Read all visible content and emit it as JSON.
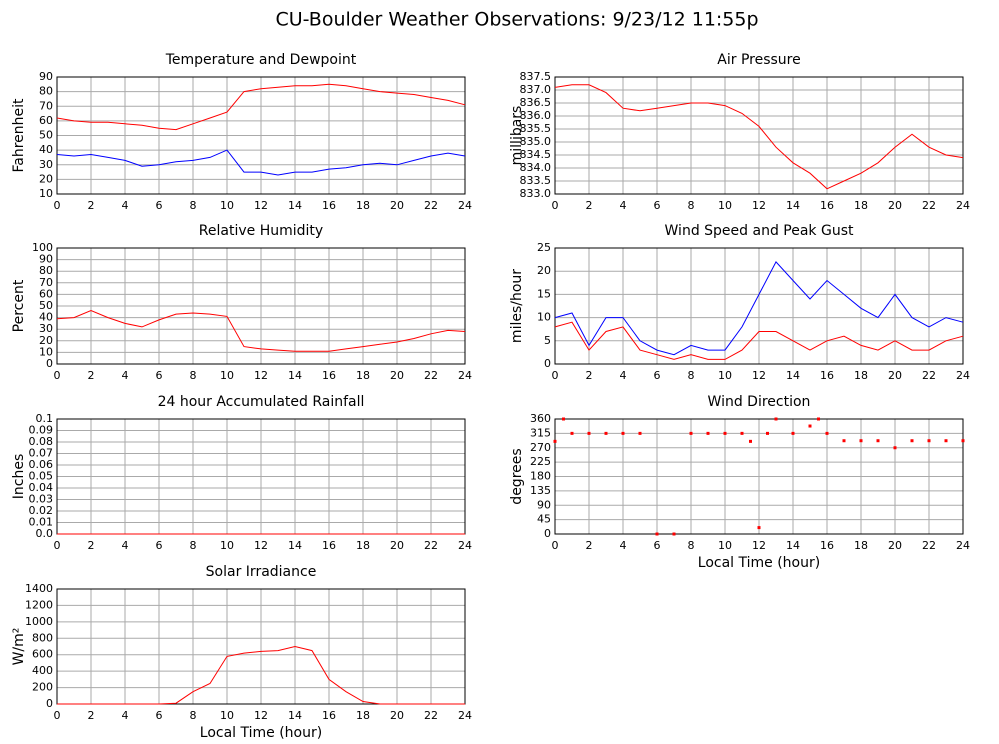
{
  "title": "CU-Boulder Weather Observations: 9/23/12 11:55p",
  "chart_data": [
    {
      "type": "line",
      "title": "Temperature and Dewpoint",
      "y_label": "Fahrenheit",
      "x": [
        0,
        1,
        2,
        3,
        4,
        5,
        6,
        7,
        8,
        9,
        10,
        11,
        12,
        13,
        14,
        15,
        16,
        17,
        18,
        19,
        20,
        21,
        22,
        23,
        24
      ],
      "series": [
        {
          "color": "#ff0000",
          "values": [
            62,
            60,
            59,
            59,
            58,
            57,
            55,
            54,
            58,
            62,
            66,
            80,
            82,
            83,
            84,
            84,
            85,
            84,
            82,
            80,
            79,
            78,
            76,
            74,
            71
          ]
        },
        {
          "color": "#0000ff",
          "values": [
            37,
            36,
            37,
            35,
            33,
            29,
            30,
            32,
            33,
            35,
            40,
            25,
            25,
            23,
            25,
            25,
            27,
            28,
            30,
            31,
            30,
            33,
            36,
            38,
            36
          ]
        }
      ],
      "xlim": [
        0,
        24
      ],
      "xticks": [
        0,
        2,
        4,
        6,
        8,
        10,
        12,
        14,
        16,
        18,
        20,
        22,
        24
      ],
      "ylim": [
        10,
        90
      ],
      "yticks": [
        10,
        20,
        30,
        40,
        50,
        60,
        70,
        80,
        90
      ],
      "grid": true
    },
    {
      "type": "line",
      "title": "Air Pressure",
      "y_label": "millibars",
      "x": [
        0,
        1,
        2,
        3,
        4,
        5,
        6,
        7,
        8,
        9,
        10,
        11,
        12,
        13,
        14,
        15,
        16,
        17,
        18,
        19,
        20,
        21,
        22,
        23,
        24
      ],
      "series": [
        {
          "color": "#ff0000",
          "values": [
            837.1,
            837.2,
            837.2,
            836.9,
            836.3,
            836.2,
            836.3,
            836.4,
            836.5,
            836.5,
            836.4,
            836.1,
            835.6,
            834.8,
            834.2,
            833.8,
            833.2,
            833.5,
            833.8,
            834.2,
            834.8,
            835.3,
            834.8,
            834.5,
            834.4
          ]
        }
      ],
      "xlim": [
        0,
        24
      ],
      "xticks": [
        0,
        2,
        4,
        6,
        8,
        10,
        12,
        14,
        16,
        18,
        20,
        22,
        24
      ],
      "ylim": [
        833,
        837.5
      ],
      "yticks": [
        {
          "value": 833,
          "label": "833.0"
        },
        833.5,
        {
          "value": 834,
          "label": "834.0"
        },
        834.5,
        {
          "value": 835,
          "label": "835.0"
        },
        835.5,
        {
          "value": 836,
          "label": "836.0"
        },
        836.5,
        {
          "value": 837,
          "label": "837.0"
        },
        837.5
      ],
      "grid": true
    },
    {
      "type": "line",
      "title": "Relative Humidity",
      "y_label": "Percent",
      "x": [
        0,
        1,
        2,
        3,
        4,
        5,
        6,
        7,
        8,
        9,
        10,
        11,
        12,
        13,
        14,
        15,
        16,
        17,
        18,
        19,
        20,
        21,
        22,
        23,
        24
      ],
      "series": [
        {
          "color": "#ff0000",
          "values": [
            39,
            40,
            46,
            40,
            35,
            32,
            38,
            43,
            44,
            43,
            41,
            15,
            13,
            12,
            11,
            11,
            11,
            13,
            15,
            17,
            19,
            22,
            26,
            29,
            28
          ]
        }
      ],
      "xlim": [
        0,
        24
      ],
      "xticks": [
        0,
        2,
        4,
        6,
        8,
        10,
        12,
        14,
        16,
        18,
        20,
        22,
        24
      ],
      "ylim": [
        0,
        100
      ],
      "yticks": [
        0,
        10,
        20,
        30,
        40,
        50,
        60,
        70,
        80,
        90,
        100
      ],
      "grid": true
    },
    {
      "type": "line",
      "title": "Wind Speed and Peak Gust",
      "y_label": "miles/hour",
      "x": [
        0,
        1,
        2,
        3,
        4,
        5,
        6,
        7,
        8,
        9,
        10,
        11,
        12,
        13,
        14,
        15,
        16,
        17,
        18,
        19,
        20,
        21,
        22,
        23,
        24
      ],
      "series": [
        {
          "color": "#0000ff",
          "values": [
            10,
            11,
            4,
            10,
            10,
            5,
            3,
            2,
            4,
            3,
            3,
            8,
            15,
            22,
            18,
            14,
            18,
            15,
            12,
            10,
            15,
            10,
            8,
            10,
            9
          ]
        },
        {
          "color": "#ff0000",
          "values": [
            8,
            9,
            3,
            7,
            8,
            3,
            2,
            1,
            2,
            1,
            1,
            3,
            7,
            7,
            5,
            3,
            5,
            6,
            4,
            3,
            5,
            3,
            3,
            5,
            6
          ]
        }
      ],
      "xlim": [
        0,
        24
      ],
      "xticks": [
        0,
        2,
        4,
        6,
        8,
        10,
        12,
        14,
        16,
        18,
        20,
        22,
        24
      ],
      "ylim": [
        0,
        25
      ],
      "yticks": [
        0,
        5,
        10,
        15,
        20,
        25
      ],
      "grid": true
    },
    {
      "type": "line",
      "title": "24 hour Accumulated Rainfall",
      "y_label": "Inches",
      "x": [
        0,
        1,
        2,
        3,
        4,
        5,
        6,
        7,
        8,
        9,
        10,
        11,
        12,
        13,
        14,
        15,
        16,
        17,
        18,
        19,
        20,
        21,
        22,
        23,
        24
      ],
      "series": [
        {
          "color": "#ff0000",
          "values": [
            0,
            0,
            0,
            0,
            0,
            0,
            0,
            0,
            0,
            0,
            0,
            0,
            0,
            0,
            0,
            0,
            0,
            0,
            0,
            0,
            0,
            0,
            0,
            0,
            0
          ]
        }
      ],
      "xlim": [
        0,
        24
      ],
      "xticks": [
        0,
        2,
        4,
        6,
        8,
        10,
        12,
        14,
        16,
        18,
        20,
        22,
        24
      ],
      "ylim": [
        0,
        0.1
      ],
      "yticks": [
        {
          "value": 0,
          "label": "0.0"
        },
        0.01,
        0.02,
        0.03,
        0.04,
        0.05,
        0.06,
        0.07,
        0.08,
        0.09,
        0.1
      ],
      "grid": true
    },
    {
      "type": "scatter",
      "title": "Wind Direction",
      "y_label": "degrees",
      "x_label": "Local Time (hour)",
      "x": [
        0,
        0.5,
        1,
        2,
        3,
        4,
        5,
        6,
        7,
        8,
        9,
        10,
        11,
        11.5,
        12,
        12.5,
        13,
        14,
        15,
        15.5,
        16,
        17,
        18,
        19,
        20,
        21,
        22,
        23,
        24
      ],
      "series": [
        {
          "color": "#ff0000",
          "values": [
            290,
            360,
            315,
            315,
            315,
            315,
            315,
            0,
            0,
            315,
            315,
            315,
            315,
            290,
            20,
            315,
            360,
            315,
            338,
            360,
            315,
            292,
            292,
            292,
            270,
            292,
            292,
            292,
            292
          ]
        }
      ],
      "xlim": [
        0,
        24
      ],
      "xticks": [
        0,
        2,
        4,
        6,
        8,
        10,
        12,
        14,
        16,
        18,
        20,
        22,
        24
      ],
      "ylim": [
        0,
        360
      ],
      "yticks": [
        0,
        45,
        90,
        135,
        180,
        225,
        270,
        315,
        360
      ],
      "grid": true
    },
    {
      "type": "line",
      "title": "Solar Irradiance",
      "y_label": "W/m²",
      "x_label": "Local Time (hour)",
      "x": [
        0,
        1,
        2,
        3,
        4,
        5,
        6,
        7,
        8,
        9,
        10,
        11,
        12,
        13,
        14,
        15,
        16,
        17,
        18,
        19,
        20,
        21,
        22,
        23,
        24
      ],
      "series": [
        {
          "color": "#ff0000",
          "values": [
            0,
            0,
            0,
            0,
            0,
            0,
            0,
            10,
            150,
            250,
            580,
            620,
            640,
            650,
            700,
            650,
            300,
            150,
            30,
            0,
            0,
            0,
            0,
            0,
            0
          ]
        }
      ],
      "xlim": [
        0,
        24
      ],
      "xticks": [
        0,
        2,
        4,
        6,
        8,
        10,
        12,
        14,
        16,
        18,
        20,
        22,
        24
      ],
      "ylim": [
        0,
        1400
      ],
      "yticks": [
        0,
        200,
        400,
        600,
        800,
        1000,
        1200,
        1400
      ],
      "grid": true
    }
  ]
}
